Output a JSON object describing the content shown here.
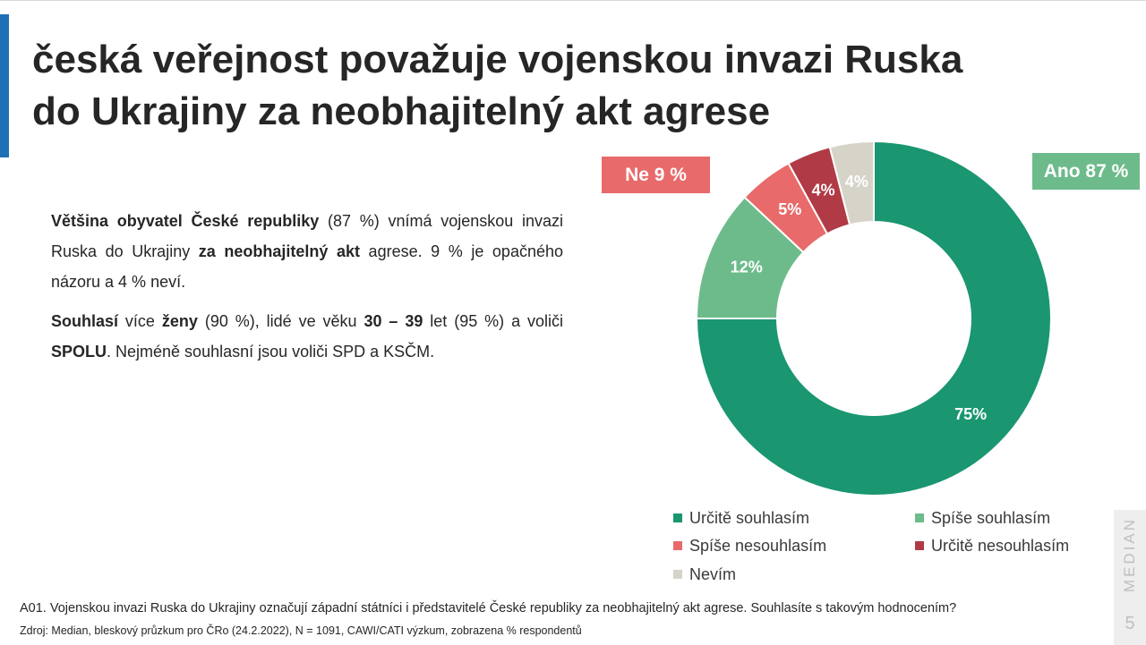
{
  "title": "česká veřejnost považuje vojenskou invazi Ruska do Ukrajiny za neobhajitelný akt agrese",
  "body": {
    "p1": [
      {
        "t": "Většina obyvatel České republiky",
        "b": true
      },
      {
        "t": " (87 %) vnímá vojenskou invazi Ruska do Ukrajiny ",
        "b": false
      },
      {
        "t": "za neobhajitelný akt",
        "b": true
      },
      {
        "t": " agrese. 9 % je opačného názoru a 4 % neví.",
        "b": false
      }
    ],
    "p2": [
      {
        "t": "Souhlasí",
        "b": true
      },
      {
        "t": " více ",
        "b": false
      },
      {
        "t": "ženy",
        "b": true
      },
      {
        "t": " (90 %), lidé ve věku ",
        "b": false
      },
      {
        "t": "30 – 39",
        "b": true
      },
      {
        "t": " let (95 %) a voliči ",
        "b": false
      },
      {
        "t": "SPOLU",
        "b": true
      },
      {
        "t": ". Nejméně souhlasní jsou voliči SPD a KSČM.",
        "b": false
      }
    ]
  },
  "badges": {
    "ne": {
      "label": "Ne 9 %",
      "color": "#e86a6a"
    },
    "ano": {
      "label": "Ano 87 %",
      "color": "#6dbb8b"
    }
  },
  "chart_data": {
    "type": "pie",
    "variant": "donut",
    "slices": [
      {
        "name": "Určitě souhlasím",
        "value": 75,
        "label": "75%",
        "color": "#1a9671"
      },
      {
        "name": "Spíše souhlasím",
        "value": 12,
        "label": "12%",
        "color": "#6dbb8b"
      },
      {
        "name": "Spíše nesouhlasím",
        "value": 5,
        "label": "5%",
        "color": "#e86a6a"
      },
      {
        "name": "Určitě nesouhlasím",
        "value": 4,
        "label": "4%",
        "color": "#b03a45"
      },
      {
        "name": "Nevím",
        "value": 4,
        "label": "4%",
        "color": "#d6d3c9"
      }
    ],
    "legend_position": "bottom"
  },
  "footnote": "A01. Vojenskou invazi Ruska do Ukrajiny označují západní státníci i představitelé České republiky za neobhajitelný akt agrese. Souhlasíte s takovým hodnocením?",
  "source": "Zdroj: Median, bleskový průzkum pro ČRo (24.2.2022), N = 1091, CAWI/CATI výzkum, zobrazena % respondentů",
  "brand": "MEDIAN",
  "page_number": "5"
}
